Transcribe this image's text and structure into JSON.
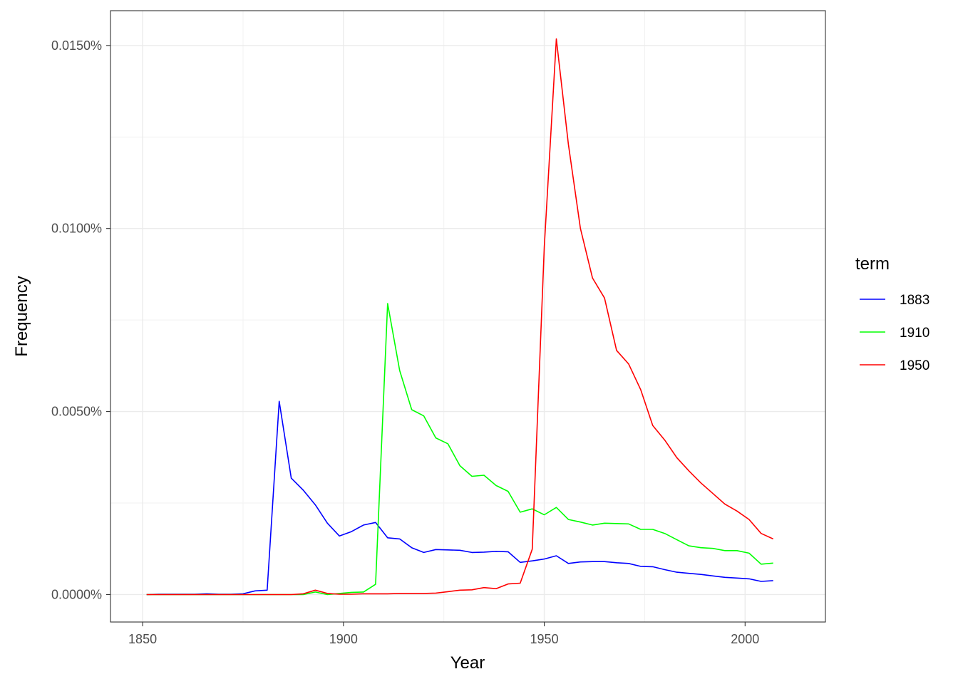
{
  "chart_data": {
    "type": "line",
    "xlabel": "Year",
    "ylabel": "Frequency",
    "xlim": [
      1842,
      1820
    ],
    "ylim": [
      -0.00075,
      0.01595
    ],
    "x_ticks": [
      1850,
      1900,
      1950,
      2000
    ],
    "x_tick_labels": [
      "1850",
      "1900",
      "1950",
      "2000"
    ],
    "y_ticks": [
      0,
      0.005,
      0.01,
      0.015
    ],
    "y_tick_labels": [
      "0.0000%",
      "0.0050%",
      "0.0100%",
      "0.0150%"
    ],
    "grid": true,
    "legend": {
      "title": "term",
      "placement": "right"
    },
    "series": [
      {
        "name": "1883",
        "color": "#0000ff",
        "x": [
          1851,
          1854,
          1857,
          1860,
          1863,
          1866,
          1869,
          1872,
          1875,
          1878,
          1881,
          1884,
          1887,
          1890,
          1893,
          1896,
          1899,
          1902,
          1905,
          1908,
          1911,
          1914,
          1917,
          1920,
          1923,
          1926,
          1929,
          1932,
          1935,
          1938,
          1941,
          1944,
          1947,
          1950,
          1953,
          1956,
          1959,
          1962,
          1965,
          1968,
          1971,
          1974,
          1977,
          1980,
          1983,
          1986,
          1989,
          1992,
          1995,
          1998,
          2001,
          2004,
          2007
        ],
        "values": [
          0,
          1e-05,
          1e-05,
          1e-05,
          1e-05,
          2e-05,
          1e-05,
          1e-05,
          2e-05,
          0.0001,
          0.00012,
          0.00528,
          0.00318,
          0.00285,
          0.00245,
          0.00195,
          0.0016,
          0.00172,
          0.0019,
          0.00197,
          0.00155,
          0.00152,
          0.00128,
          0.00115,
          0.00123,
          0.00122,
          0.00121,
          0.00115,
          0.00116,
          0.00118,
          0.00117,
          0.00088,
          0.00092,
          0.00097,
          0.00106,
          0.00085,
          0.00089,
          0.0009,
          0.0009,
          0.00087,
          0.00085,
          0.00077,
          0.00076,
          0.00068,
          0.00061,
          0.00058,
          0.00055,
          0.00051,
          0.00047,
          0.00045,
          0.00043,
          0.00036,
          0.00038
        ]
      },
      {
        "name": "1910",
        "color": "#00ff00",
        "x": [
          1851,
          1854,
          1857,
          1860,
          1863,
          1866,
          1869,
          1872,
          1875,
          1878,
          1881,
          1884,
          1887,
          1890,
          1893,
          1896,
          1899,
          1902,
          1905,
          1908,
          1911,
          1914,
          1917,
          1920,
          1923,
          1926,
          1929,
          1932,
          1935,
          1938,
          1941,
          1944,
          1947,
          1950,
          1953,
          1956,
          1959,
          1962,
          1965,
          1968,
          1971,
          1974,
          1977,
          1980,
          1983,
          1986,
          1989,
          1992,
          1995,
          1998,
          2001,
          2004,
          2007
        ],
        "values": [
          0,
          0,
          0,
          0,
          0,
          0,
          0,
          0,
          0,
          0,
          0,
          0,
          0,
          0,
          7e-05,
          0,
          3e-05,
          6e-05,
          7e-05,
          0.00028,
          0.00795,
          0.00612,
          0.00505,
          0.00488,
          0.00428,
          0.00412,
          0.00352,
          0.00323,
          0.00326,
          0.00298,
          0.00282,
          0.00225,
          0.00234,
          0.00218,
          0.00238,
          0.00205,
          0.00198,
          0.0019,
          0.00195,
          0.00194,
          0.00193,
          0.00178,
          0.00178,
          0.00167,
          0.0015,
          0.00133,
          0.00128,
          0.00126,
          0.0012,
          0.0012,
          0.00113,
          0.00083,
          0.00086
        ]
      },
      {
        "name": "1950",
        "color": "#ff0000",
        "x": [
          1851,
          1854,
          1857,
          1860,
          1863,
          1866,
          1869,
          1872,
          1875,
          1878,
          1881,
          1884,
          1887,
          1890,
          1893,
          1896,
          1899,
          1902,
          1905,
          1908,
          1911,
          1914,
          1917,
          1920,
          1923,
          1926,
          1929,
          1932,
          1935,
          1938,
          1941,
          1944,
          1947,
          1950,
          1953,
          1956,
          1959,
          1962,
          1965,
          1968,
          1971,
          1974,
          1977,
          1980,
          1983,
          1986,
          1989,
          1992,
          1995,
          1998,
          2001,
          2004,
          2007
        ],
        "values": [
          0,
          0,
          0,
          0,
          0,
          0,
          0,
          0,
          0,
          0,
          0,
          0,
          0,
          2e-05,
          0.00012,
          3e-05,
          1e-05,
          1e-05,
          2e-05,
          2e-05,
          2e-05,
          3e-05,
          3e-05,
          3e-05,
          4e-05,
          8e-05,
          0.00012,
          0.00013,
          0.00019,
          0.00016,
          0.00029,
          0.00031,
          0.00124,
          0.0095,
          0.01518,
          0.0123,
          0.01,
          0.00865,
          0.0081,
          0.00667,
          0.0063,
          0.0056,
          0.00462,
          0.00422,
          0.00374,
          0.00338,
          0.00305,
          0.00276,
          0.00247,
          0.00228,
          0.00205,
          0.00167,
          0.00152
        ]
      }
    ]
  }
}
